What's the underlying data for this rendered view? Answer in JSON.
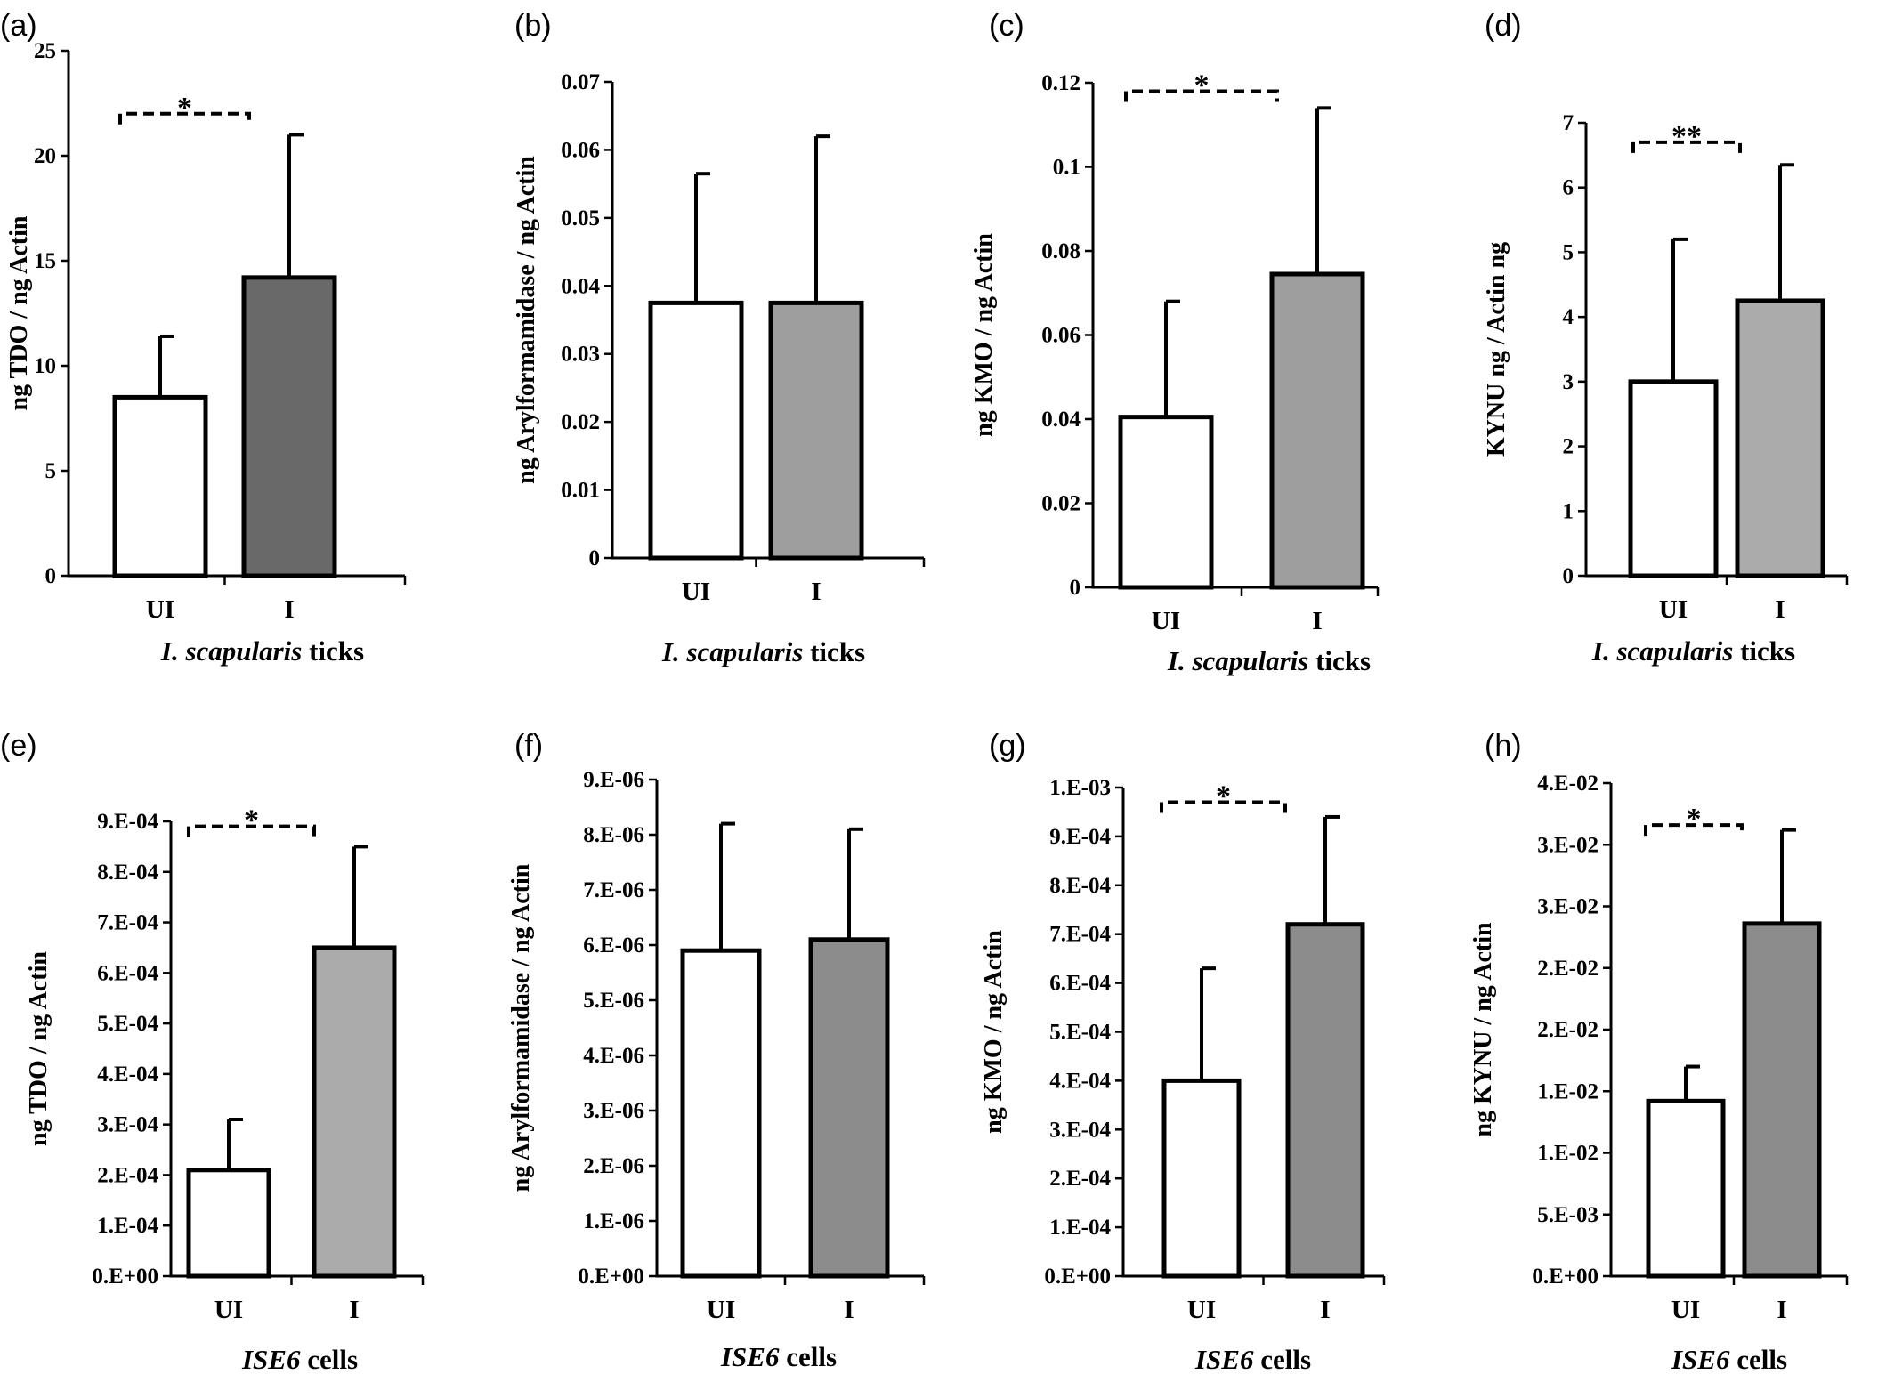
{
  "figure": {
    "panels": [
      "a",
      "b",
      "c",
      "d",
      "e",
      "f",
      "g",
      "h"
    ]
  },
  "chart_data": [
    {
      "panel": "(a)",
      "type": "bar",
      "ylabel": "ng TDO / ng Actin",
      "xlabel": {
        "italic": "I. scapularis",
        "rest": " ticks"
      },
      "categories": [
        "UI",
        "I"
      ],
      "values": [
        8.5,
        14.2
      ],
      "errors": [
        2.9,
        6.8
      ],
      "colors": [
        "#ffffff",
        "#696969"
      ],
      "ylim": [
        0,
        25
      ],
      "ticks": [
        0,
        5,
        10,
        15,
        20,
        25
      ],
      "tick_labels": [
        "0",
        "5",
        "10",
        "15",
        "20",
        "25"
      ],
      "significance": {
        "text": "*",
        "level": 22
      },
      "grid": false
    },
    {
      "panel": "(b)",
      "type": "bar",
      "ylabel": "ng Arylformamidase / ng Actin",
      "xlabel": {
        "italic": "I. scapularis",
        "rest": " ticks"
      },
      "categories": [
        "UI",
        "I"
      ],
      "values": [
        0.0375,
        0.0375
      ],
      "errors": [
        0.019,
        0.0245
      ],
      "colors": [
        "#ffffff",
        "#9e9e9e"
      ],
      "ylim": [
        0,
        0.07
      ],
      "ticks": [
        0,
        0.01,
        0.02,
        0.03,
        0.04,
        0.05,
        0.06,
        0.07
      ],
      "tick_labels": [
        "0",
        "0.01",
        "0.02",
        "0.03",
        "0.04",
        "0.05",
        "0.06",
        "0.07"
      ],
      "significance": null,
      "grid": false
    },
    {
      "panel": "(c)",
      "type": "bar",
      "ylabel": "ng KMO / ng Actin",
      "xlabel": {
        "italic": "I. scapularis",
        "rest": " ticks"
      },
      "categories": [
        "UI",
        "I"
      ],
      "values": [
        0.0405,
        0.0745
      ],
      "errors": [
        0.0275,
        0.0395
      ],
      "colors": [
        "#ffffff",
        "#9e9e9e"
      ],
      "ylim": [
        0,
        0.12
      ],
      "ticks": [
        0,
        0.02,
        0.04,
        0.06,
        0.08,
        0.1,
        0.12
      ],
      "tick_labels": [
        "0",
        "0.02",
        "0.04",
        "0.06",
        "0.08",
        "0.1",
        "0.12"
      ],
      "significance": {
        "text": "*",
        "level": 0.118
      },
      "grid": false
    },
    {
      "panel": "(d)",
      "type": "bar",
      "ylabel": "KYNU ng / Actin ng",
      "xlabel": {
        "italic": "I. scapularis",
        "rest": " ticks"
      },
      "categories": [
        "UI",
        "I"
      ],
      "values": [
        3.0,
        4.25
      ],
      "errors": [
        2.2,
        2.1
      ],
      "colors": [
        "#ffffff",
        "#ababab"
      ],
      "ylim": [
        0,
        7
      ],
      "ticks": [
        0,
        1,
        2,
        3,
        4,
        5,
        6,
        7
      ],
      "tick_labels": [
        "0",
        "1",
        "2",
        "3",
        "4",
        "5",
        "6",
        "7"
      ],
      "significance": {
        "text": "**",
        "level": 6.7
      },
      "grid": false
    },
    {
      "panel": "(e)",
      "type": "bar",
      "ylabel": "ng TDO / ng Actin",
      "xlabel": {
        "italic": "ISE6",
        "rest": " cells"
      },
      "categories": [
        "UI",
        "I"
      ],
      "values": [
        0.00021,
        0.00065
      ],
      "errors": [
        0.0001,
        0.0002
      ],
      "colors": [
        "#ffffff",
        "#ababab"
      ],
      "ylim": [
        0,
        0.0009
      ],
      "ticks": [
        0,
        0.0001,
        0.0002,
        0.0003,
        0.0004,
        0.0005,
        0.0006,
        0.0007,
        0.0008,
        0.0009
      ],
      "tick_labels": [
        "0.E+00",
        "1.E-04",
        "2.E-04",
        "3.E-04",
        "4.E-04",
        "5.E-04",
        "6.E-04",
        "7.E-04",
        "8.E-04",
        "9.E-04"
      ],
      "significance": {
        "text": "*",
        "level": 0.00089
      },
      "grid": false
    },
    {
      "panel": "(f)",
      "type": "bar",
      "ylabel": "ng Arylformamidase / ng Actin",
      "xlabel": {
        "italic": "ISE6",
        "rest": " cells"
      },
      "categories": [
        "UI",
        "I"
      ],
      "values": [
        5.9e-06,
        6.1e-06
      ],
      "errors": [
        2.3e-06,
        2e-06
      ],
      "colors": [
        "#ffffff",
        "#8c8c8c"
      ],
      "ylim": [
        0,
        9e-06
      ],
      "ticks": [
        0,
        1e-06,
        2e-06,
        3e-06,
        4e-06,
        5e-06,
        6e-06,
        7e-06,
        8e-06,
        9e-06
      ],
      "tick_labels": [
        "0.E+00",
        "1.E-06",
        "2.E-06",
        "3.E-06",
        "4.E-06",
        "5.E-06",
        "6.E-06",
        "7.E-06",
        "8.E-06",
        "9.E-06"
      ],
      "significance": null,
      "grid": false
    },
    {
      "panel": "(g)",
      "type": "bar",
      "ylabel": "ng KMO / ng Actin",
      "xlabel": {
        "italic": "ISE6",
        "rest": " cells"
      },
      "categories": [
        "UI",
        "I"
      ],
      "values": [
        0.0004,
        0.00072
      ],
      "errors": [
        0.00023,
        0.00022
      ],
      "colors": [
        "#ffffff",
        "#8c8c8c"
      ],
      "ylim": [
        0,
        0.001
      ],
      "ticks": [
        0,
        0.0001,
        0.0002,
        0.0003,
        0.0004,
        0.0005,
        0.0006,
        0.0007,
        0.0008,
        0.0009,
        0.001
      ],
      "tick_labels": [
        "0.E+00",
        "1.E-04",
        "2.E-04",
        "3.E-04",
        "4.E-04",
        "5.E-04",
        "6.E-04",
        "7.E-04",
        "8.E-04",
        "9.E-04",
        "1.E-03"
      ],
      "significance": {
        "text": "*",
        "level": 0.00097
      },
      "grid": false
    },
    {
      "panel": "(h)",
      "type": "bar",
      "ylabel": "ng KYNU / ng Actin",
      "xlabel": {
        "italic": "ISE6",
        "rest": " cells"
      },
      "categories": [
        "UI",
        "I"
      ],
      "values": [
        0.0142,
        0.0286
      ],
      "errors": [
        0.0028,
        0.0076
      ],
      "colors": [
        "#ffffff",
        "#8c8c8c"
      ],
      "ylim": [
        0,
        0.04
      ],
      "ticks": [
        0,
        0.005,
        0.01,
        0.015,
        0.02,
        0.025,
        0.03,
        0.035,
        0.04
      ],
      "tick_labels": [
        "0.E+00",
        "5.E-03",
        "1.E-02",
        "1.E-02",
        "2.E-02",
        "2.E-02",
        "3.E-02",
        "3.E-02",
        "4.E-02"
      ],
      "significance": {
        "text": "*",
        "level": 0.0366
      },
      "grid": false
    }
  ]
}
